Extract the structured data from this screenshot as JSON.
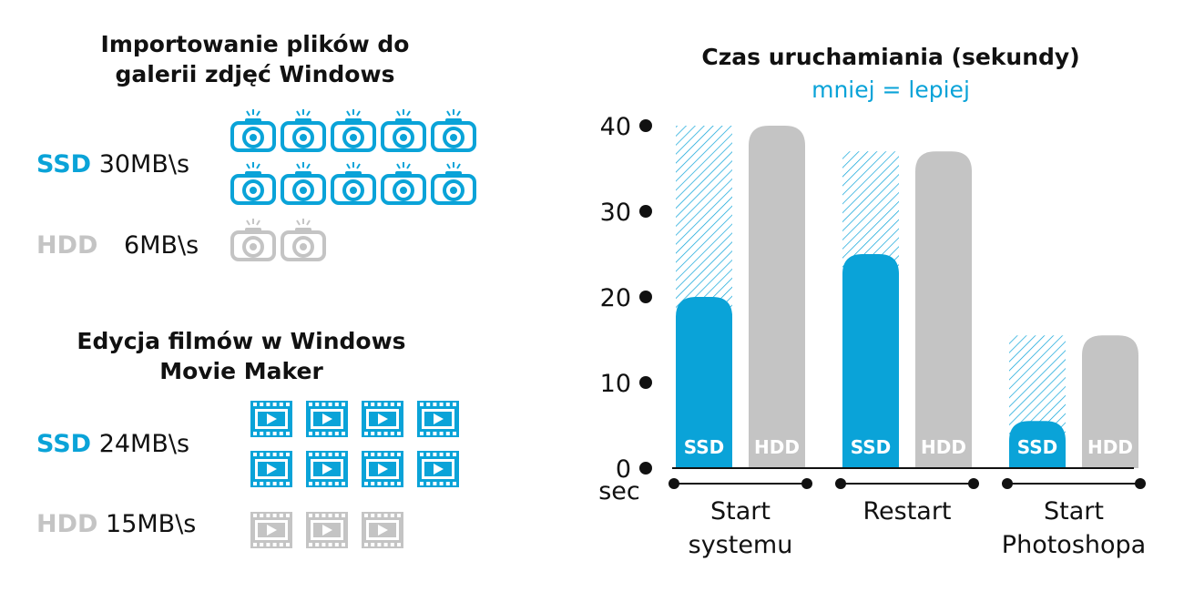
{
  "colors": {
    "ssd": "#0aa3d8",
    "hdd": "#c4c4c4",
    "text": "#111111"
  },
  "import_section": {
    "title_line1": "Importowanie plików do",
    "title_line2": "galerii zdjęć Windows",
    "ssd": {
      "drive": "SSD",
      "speed": "30MB\\s",
      "icon_count": 10
    },
    "hdd": {
      "drive": "HDD",
      "speed": "6MB\\s",
      "icon_count": 2
    },
    "icon": "camera-icon"
  },
  "movie_section": {
    "title_line1": "Edycja filmów w Windows",
    "title_line2": "Movie Maker",
    "ssd": {
      "drive": "SSD",
      "speed": "24MB\\s",
      "icon_count": 8
    },
    "hdd": {
      "drive": "HDD",
      "speed": "15MB\\s",
      "icon_count": 3
    },
    "icon": "film-frame-icon"
  },
  "chart_data": {
    "type": "bar",
    "title": "Czas uruchamiania (sekundy)",
    "subtitle": "mniej = lepiej",
    "ylabel": "sec",
    "ylim": [
      0,
      40
    ],
    "yticks": [
      "0",
      "10",
      "20",
      "30",
      "40"
    ],
    "categories": [
      {
        "line1": "Start",
        "line2": "systemu"
      },
      {
        "line1": "Restart",
        "line2": ""
      },
      {
        "line1": "Start",
        "line2": "Photoshopa"
      }
    ],
    "series": [
      {
        "name": "SSD",
        "values": [
          20,
          25,
          5.5
        ]
      },
      {
        "name": "HDD",
        "values": [
          40,
          37,
          15.5
        ]
      }
    ],
    "grid": false,
    "legend": "none"
  }
}
